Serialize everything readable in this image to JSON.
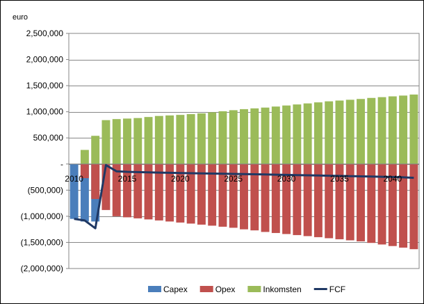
{
  "chart_data": {
    "type": "bar",
    "title": "",
    "xlabel": "",
    "ylabel": "euro",
    "ylim": [
      -2000000,
      2500000
    ],
    "yticks": [
      2500000,
      2000000,
      1500000,
      1000000,
      500000,
      0,
      -500000,
      -1000000,
      -1500000,
      -2000000
    ],
    "ytick_labels": [
      "2,500,000",
      "2,000,000",
      "1,500,000",
      "1,000,000",
      "500,000",
      "-",
      "(500,000)",
      "(1,000,000)",
      "(1,500,000)",
      "(2,000,000)"
    ],
    "x": [
      2010,
      2011,
      2012,
      2013,
      2014,
      2015,
      2016,
      2017,
      2018,
      2019,
      2020,
      2021,
      2022,
      2023,
      2024,
      2025,
      2026,
      2027,
      2028,
      2029,
      2030,
      2031,
      2032,
      2033,
      2034,
      2035,
      2036,
      2037,
      2038,
      2039,
      2040,
      2041,
      2042
    ],
    "xtick_labels": [
      {
        "year": 2010,
        "label": "2010"
      },
      {
        "year": 2015,
        "label": "2015"
      },
      {
        "year": 2020,
        "label": "2020"
      },
      {
        "year": 2025,
        "label": "2025"
      },
      {
        "year": 2030,
        "label": "2030"
      },
      {
        "year": 2035,
        "label": "2035"
      },
      {
        "year": 2040,
        "label": "2040"
      }
    ],
    "series": [
      {
        "name": "Capex",
        "kind": "bar",
        "color": "#4a7ebb",
        "values": [
          -1050000,
          -1100000,
          -1100000,
          0,
          0,
          0,
          0,
          0,
          0,
          0,
          0,
          0,
          0,
          0,
          0,
          0,
          0,
          0,
          0,
          0,
          0,
          0,
          0,
          0,
          0,
          0,
          0,
          0,
          0,
          0,
          0,
          0,
          0
        ]
      },
      {
        "name": "Opex",
        "kind": "bar",
        "color": "#c0504d",
        "values": [
          0,
          -270000,
          -670000,
          -880000,
          -1000000,
          -1020000,
          -1040000,
          -1060000,
          -1080000,
          -1100000,
          -1120000,
          -1140000,
          -1160000,
          -1180000,
          -1200000,
          -1220000,
          -1250000,
          -1270000,
          -1300000,
          -1320000,
          -1340000,
          -1360000,
          -1380000,
          -1400000,
          -1420000,
          -1440000,
          -1460000,
          -1480000,
          -1510000,
          -1540000,
          -1570000,
          -1600000,
          -1630000
        ]
      },
      {
        "name": "Inkomsten",
        "kind": "bar",
        "color": "#9bbb59",
        "values": [
          0,
          270000,
          540000,
          840000,
          860000,
          870000,
          880000,
          900000,
          920000,
          930000,
          940000,
          955000,
          970000,
          990000,
          1010000,
          1030000,
          1050000,
          1065000,
          1080000,
          1100000,
          1120000,
          1140000,
          1160000,
          1180000,
          1200000,
          1215000,
          1230000,
          1245000,
          1265000,
          1280000,
          1295000,
          1310000,
          1330000
        ]
      },
      {
        "name": "FCF",
        "kind": "line",
        "color": "#1f3864",
        "values": [
          -1050000,
          -1080000,
          -1230000,
          -20000,
          -140000,
          -150000,
          -155000,
          -160000,
          -165000,
          -168000,
          -172000,
          -176000,
          -180000,
          -183000,
          -186000,
          -190000,
          -193000,
          -196000,
          -200000,
          -204000,
          -208000,
          -212000,
          -216000,
          -220000,
          -224000,
          -228000,
          -232000,
          -236000,
          -240000,
          -244000,
          -248000,
          -254000,
          -265000
        ]
      }
    ],
    "grid": "horizontal",
    "legend": "bottom"
  }
}
